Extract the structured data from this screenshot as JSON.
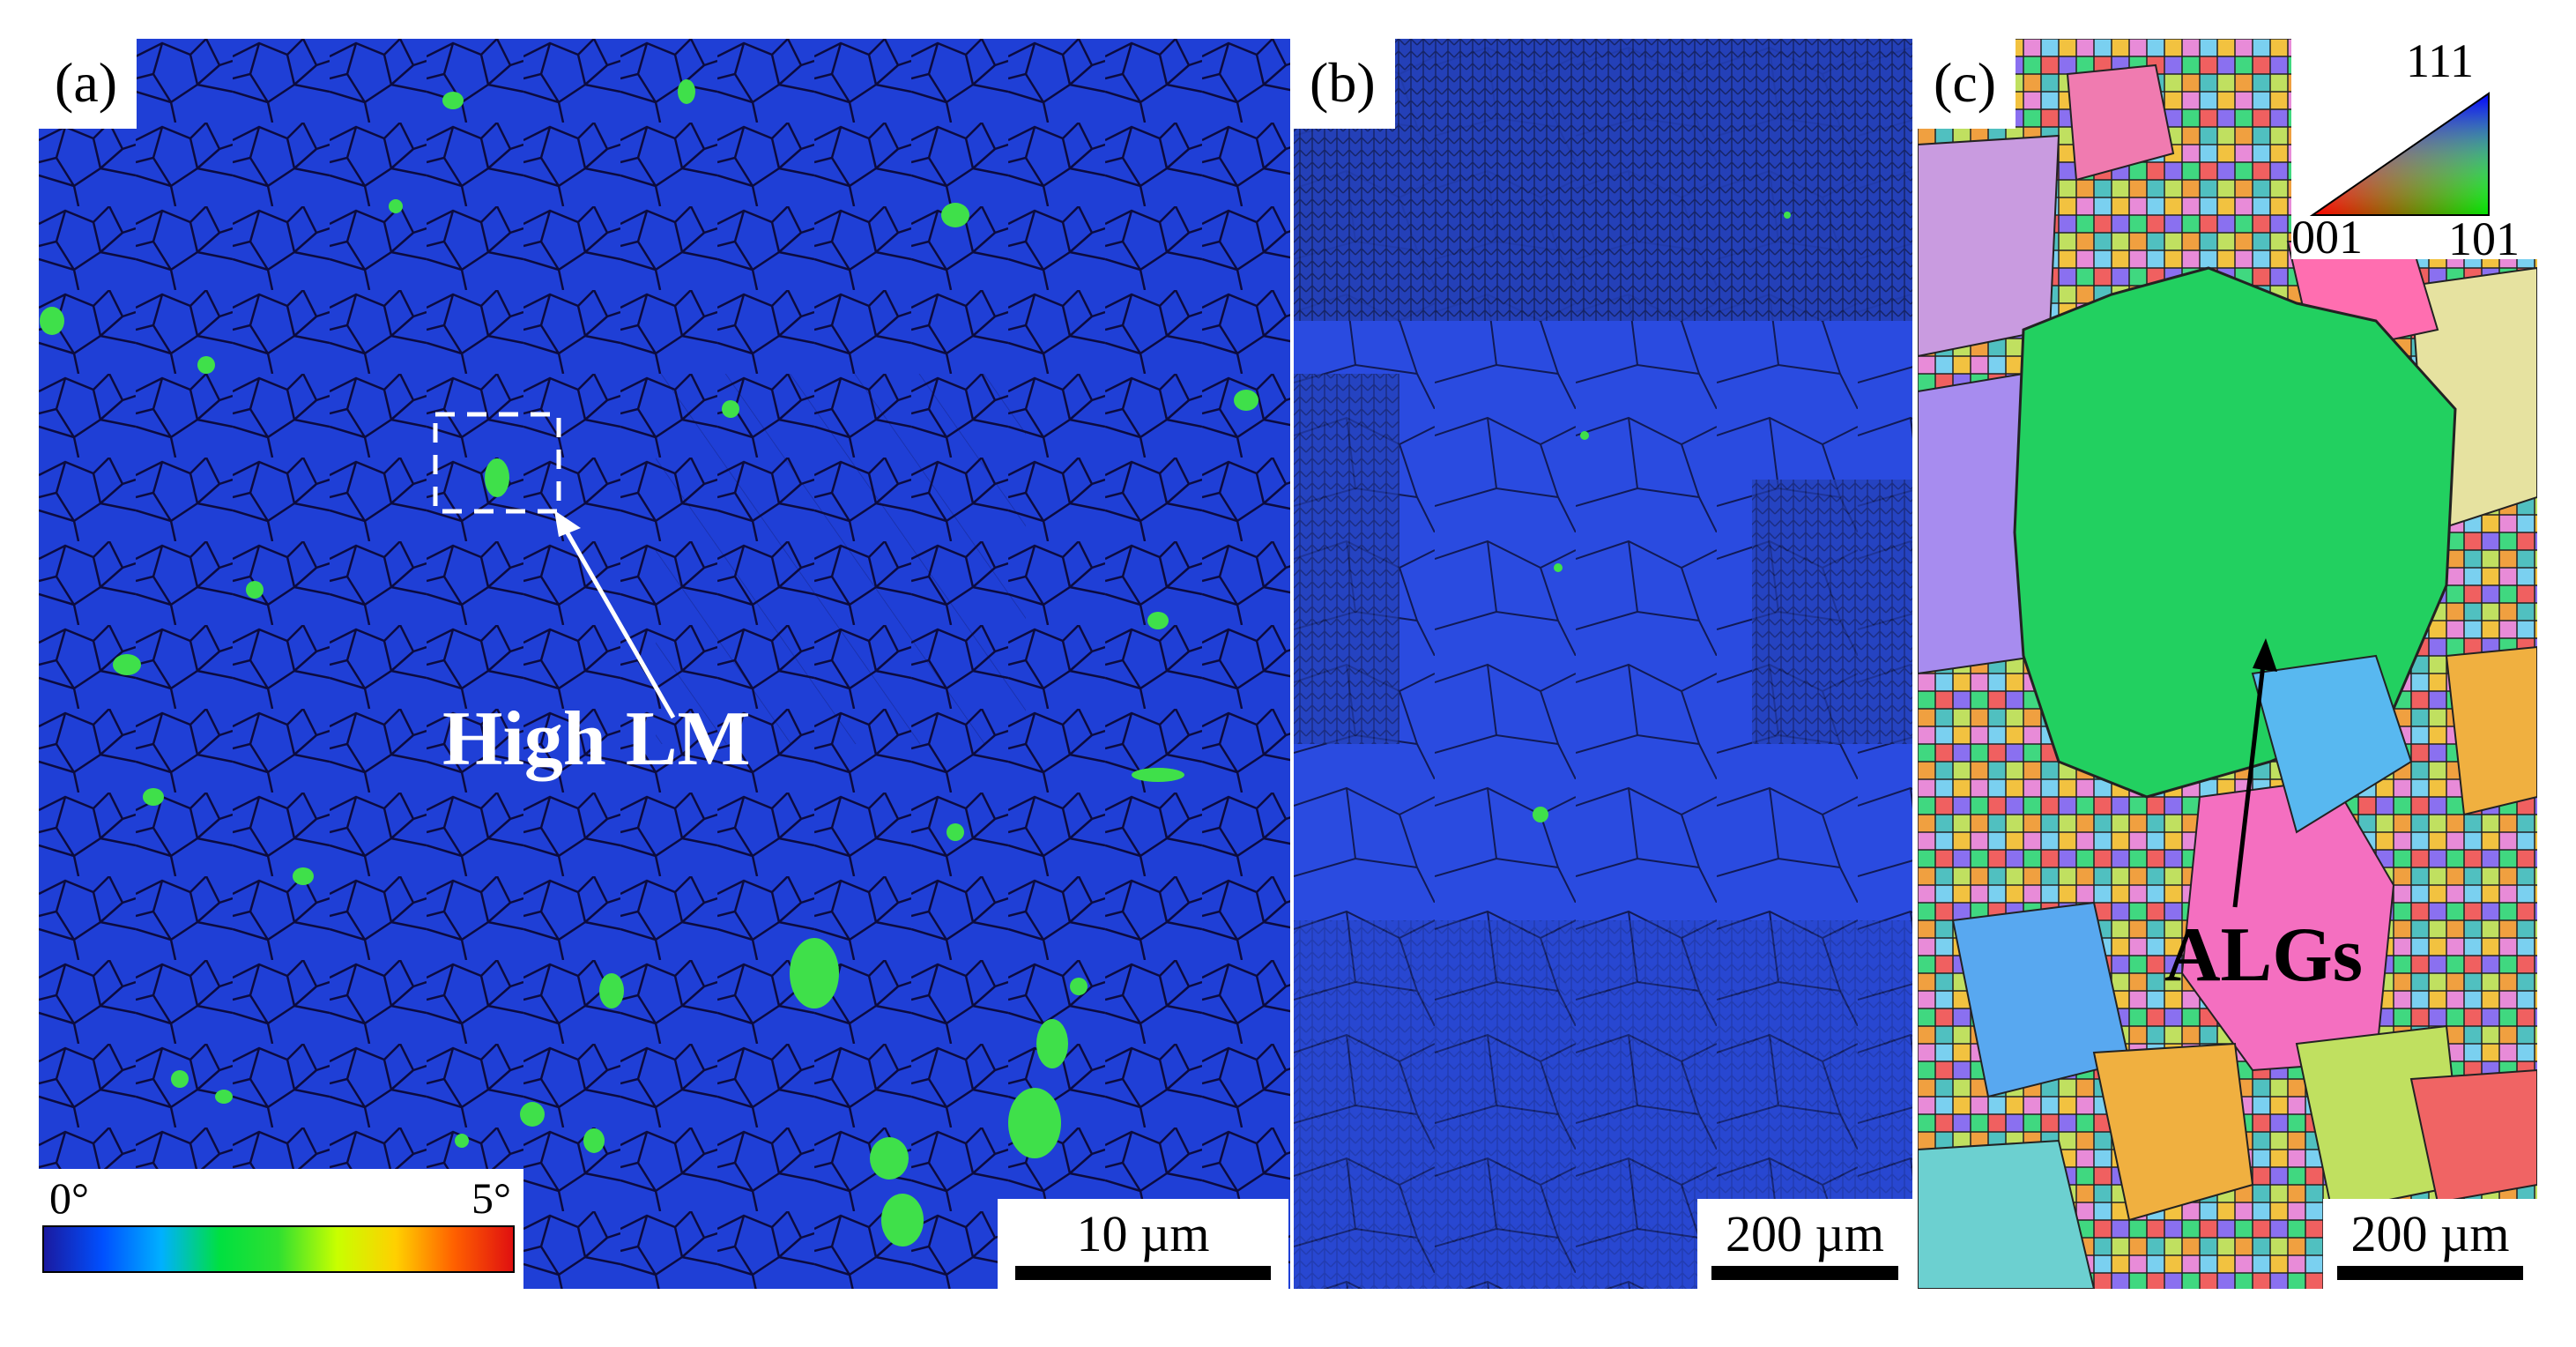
{
  "panels": [
    {
      "id": "a",
      "label": "(a)",
      "scale": "10 µm"
    },
    {
      "id": "b",
      "label": "(b)",
      "scale": "200 µm"
    },
    {
      "id": "c",
      "label": "(c)",
      "scale": "200 µm"
    }
  ],
  "annotations": {
    "high_lm": "High LM",
    "algs": "ALGs"
  },
  "colorbar": {
    "min": "0°",
    "max": "5°",
    "colors": [
      "#1a1aa0",
      "#0050ff",
      "#00b0ff",
      "#00e040",
      "#30e030",
      "#c8ff00",
      "#ffd000",
      "#ff6000",
      "#e01010"
    ]
  },
  "ipf_key": {
    "top": "111",
    "left": "001",
    "right": "101"
  },
  "palette": {
    "kam_background": "#1e3ad8",
    "high_lm_green": "#3fe04a",
    "boundary": "#0a0a3a"
  }
}
